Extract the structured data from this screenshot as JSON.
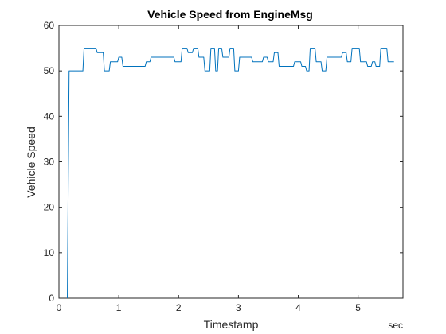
{
  "chart_data": {
    "type": "line",
    "title": "Vehicle Speed from EngineMsg",
    "xlabel": "Timestamp",
    "ylabel": "Vehicle Speed",
    "x_unit": "sec",
    "xlim": [
      0,
      5.75
    ],
    "ylim": [
      0,
      60
    ],
    "xticks": [
      "0",
      "1",
      "2",
      "3",
      "4",
      "5"
    ],
    "yticks": [
      "0",
      "10",
      "20",
      "30",
      "40",
      "50",
      "60"
    ],
    "grid": false,
    "legend": "none",
    "line_color": "#0072BD",
    "series": [
      {
        "x": [
          0.14,
          0.17,
          0.4,
          0.42,
          0.62,
          0.64,
          0.74,
          0.76,
          0.84,
          0.86,
          0.98,
          1.0,
          1.05,
          1.07,
          1.13,
          1.15,
          1.44,
          1.46,
          1.52,
          1.54,
          1.92,
          1.94,
          2.04,
          2.06,
          2.14,
          2.16,
          2.23,
          2.25,
          2.32,
          2.34,
          2.42,
          2.44,
          2.52,
          2.54,
          2.6,
          2.62,
          2.65,
          2.67,
          2.72,
          2.74,
          2.84,
          2.86,
          2.92,
          2.94,
          3.0,
          3.02,
          3.22,
          3.24,
          3.4,
          3.42,
          3.48,
          3.5,
          3.58,
          3.6,
          3.66,
          3.68,
          3.92,
          3.94,
          4.04,
          4.06,
          4.12,
          4.14,
          4.18,
          4.2,
          4.28,
          4.3,
          4.38,
          4.4,
          4.46,
          4.48,
          4.72,
          4.74,
          4.8,
          4.82,
          4.88,
          4.9,
          5.02,
          5.04,
          5.14,
          5.16,
          5.22,
          5.24,
          5.28,
          5.3,
          5.36,
          5.38,
          5.48,
          5.5,
          5.6
        ],
        "y": [
          0,
          50,
          50,
          55,
          55,
          54,
          54,
          50,
          50,
          52,
          52,
          53,
          53,
          51,
          51,
          51,
          51,
          52,
          52,
          53,
          53,
          52,
          52,
          55,
          55,
          54,
          54,
          55,
          55,
          53,
          53,
          50,
          50,
          55,
          55,
          50,
          50,
          55,
          55,
          53,
          53,
          55,
          55,
          50,
          50,
          53,
          53,
          52,
          52,
          53,
          53,
          52,
          52,
          54,
          54,
          51,
          51,
          52,
          52,
          51,
          51,
          50,
          50,
          55,
          55,
          52,
          52,
          50,
          50,
          53,
          53,
          54,
          54,
          52,
          52,
          55,
          55,
          52,
          52,
          51,
          51,
          52,
          52,
          51,
          51,
          55,
          55,
          52,
          52
        ]
      }
    ]
  }
}
